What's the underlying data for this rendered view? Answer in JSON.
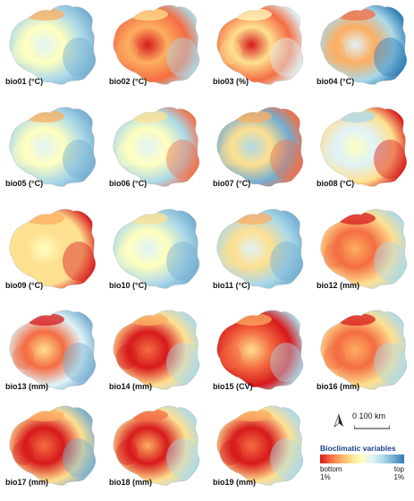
{
  "panels": [
    {
      "id": "bio01",
      "label": "bio01 (°C)",
      "palette": [
        "#fdae61",
        "#ffffbf",
        "#e0f3f8",
        "#abd9e9",
        "#74add1"
      ]
    },
    {
      "id": "bio02",
      "label": "bio02 (°C)",
      "palette": [
        "#fee090",
        "#fdae61",
        "#d7191c",
        "#f46d43",
        "#abd9e9"
      ]
    },
    {
      "id": "bio03",
      "label": "bio03 (%)",
      "palette": [
        "#ffffbf",
        "#fee090",
        "#d7191c",
        "#f46d43",
        "#e0f3f8"
      ]
    },
    {
      "id": "bio04",
      "label": "bio04 (°C)",
      "palette": [
        "#f46d43",
        "#fdae61",
        "#e0f3f8",
        "#abd9e9",
        "#2c7bb6"
      ]
    },
    {
      "id": "bio05",
      "label": "bio05 (°C)",
      "palette": [
        "#fdae61",
        "#ffffbf",
        "#e0f3f8",
        "#abd9e9",
        "#74add1"
      ]
    },
    {
      "id": "bio06",
      "label": "bio06 (°C)",
      "palette": [
        "#fee090",
        "#ffffbf",
        "#e0f3f8",
        "#abd9e9",
        "#f46d43"
      ]
    },
    {
      "id": "bio07",
      "label": "bio07 (°C)",
      "palette": [
        "#fdae61",
        "#fee090",
        "#abd9e9",
        "#74add1",
        "#f46d43"
      ]
    },
    {
      "id": "bio08",
      "label": "bio08 (°C)",
      "palette": [
        "#abd9e9",
        "#e0f3f8",
        "#ffffbf",
        "#fee090",
        "#d7191c"
      ]
    },
    {
      "id": "bio09",
      "label": "bio09 (°C)",
      "palette": [
        "#fdae61",
        "#fee090",
        "#ffffbf",
        "#fee090",
        "#d7191c"
      ]
    },
    {
      "id": "bio10",
      "label": "bio10 (°C)",
      "palette": [
        "#fee090",
        "#ffffbf",
        "#e0f3f8",
        "#abd9e9",
        "#74add1"
      ]
    },
    {
      "id": "bio11",
      "label": "bio11 (°C)",
      "palette": [
        "#fdae61",
        "#fee090",
        "#e0f3f8",
        "#abd9e9",
        "#74add1"
      ]
    },
    {
      "id": "bio12",
      "label": "bio12 (mm)",
      "palette": [
        "#d7191c",
        "#f46d43",
        "#fdae61",
        "#fee090",
        "#abd9e9"
      ]
    },
    {
      "id": "bio13",
      "label": "bio13 (mm)",
      "palette": [
        "#d7191c",
        "#f46d43",
        "#fee090",
        "#e0f3f8",
        "#74add1"
      ]
    },
    {
      "id": "bio14",
      "label": "bio14 (mm)",
      "palette": [
        "#fdae61",
        "#d7191c",
        "#f46d43",
        "#fee090",
        "#abd9e9"
      ]
    },
    {
      "id": "bio15",
      "label": "bio15 (CV)",
      "palette": [
        "#fdae61",
        "#f46d43",
        "#fee090",
        "#d7191c",
        "#abd9e9"
      ]
    },
    {
      "id": "bio16",
      "label": "bio16 (mm)",
      "palette": [
        "#d7191c",
        "#f46d43",
        "#fdae61",
        "#fee090",
        "#abd9e9"
      ]
    },
    {
      "id": "bio17",
      "label": "bio17 (mm)",
      "palette": [
        "#fdae61",
        "#d7191c",
        "#f46d43",
        "#fee090",
        "#74add1"
      ]
    },
    {
      "id": "bio18",
      "label": "bio18 (mm)",
      "palette": [
        "#f46d43",
        "#d7191c",
        "#fdae61",
        "#fee090",
        "#abd9e9"
      ]
    },
    {
      "id": "bio19",
      "label": "bio19 (mm)",
      "palette": [
        "#fdae61",
        "#d7191c",
        "#f46d43",
        "#fee090",
        "#abd9e9"
      ]
    }
  ],
  "legend": {
    "scale_text": "0   100 km",
    "title": "Bioclimatic variables",
    "bottom_label": "bottom",
    "bottom_pct": "1%",
    "top_label": "top",
    "top_pct": "1%"
  },
  "colors": {
    "ramp": [
      "#d7191c",
      "#f46d43",
      "#fdae61",
      "#fee090",
      "#ffffbf",
      "#e0f3f8",
      "#abd9e9",
      "#74add1",
      "#2c7bb6"
    ],
    "title": "#1a3f8a"
  }
}
